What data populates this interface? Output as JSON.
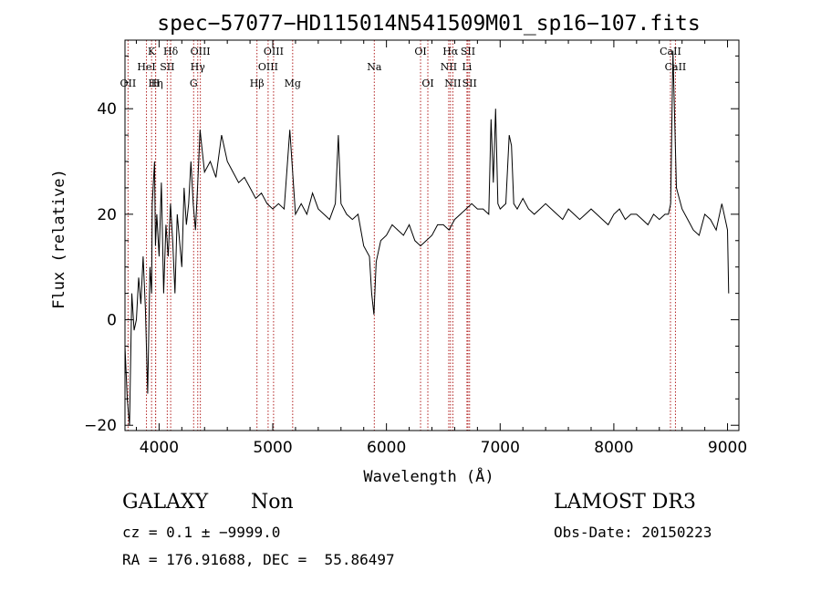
{
  "chart_data": {
    "type": "line",
    "title": "spec−57077−HD115014N541509M01_sp16−107.fits",
    "xlabel": "Wavelength (Å)",
    "ylabel": "Flux (relative)",
    "xlim": [
      3700,
      9100
    ],
    "ylim": [
      -21,
      53
    ],
    "x_ticks": [
      4000,
      5000,
      6000,
      7000,
      8000,
      9000
    ],
    "y_ticks": [
      -20,
      0,
      20,
      40
    ],
    "grid": false,
    "legend": "none",
    "line_color": "#000000",
    "marker_line_color": "#b22222",
    "series": [
      {
        "x": [
          3700,
          3720,
          3740,
          3760,
          3780,
          3800,
          3820,
          3840,
          3860,
          3880,
          3900,
          3920,
          3934,
          3940,
          3960,
          3968,
          3980,
          4000,
          4020,
          4040,
          4060,
          4080,
          4100,
          4120,
          4140,
          4160,
          4180,
          4200,
          4220,
          4240,
          4260,
          4280,
          4300,
          4320,
          4340,
          4360,
          4380,
          4400,
          4450,
          4500,
          4550,
          4600,
          4650,
          4700,
          4750,
          4800,
          4850,
          4900,
          4950,
          5000,
          5050,
          5100,
          5150,
          5200,
          5250,
          5300,
          5350,
          5400,
          5450,
          5500,
          5550,
          5577,
          5600,
          5650,
          5700,
          5750,
          5800,
          5850,
          5870,
          5890,
          5910,
          5950,
          6000,
          6050,
          6100,
          6150,
          6200,
          6250,
          6300,
          6350,
          6400,
          6450,
          6500,
          6550,
          6600,
          6650,
          6700,
          6750,
          6800,
          6850,
          6900,
          6920,
          6940,
          6960,
          6980,
          7000,
          7050,
          7080,
          7100,
          7120,
          7150,
          7200,
          7250,
          7300,
          7350,
          7400,
          7450,
          7500,
          7550,
          7600,
          7650,
          7700,
          7750,
          7800,
          7850,
          7900,
          7950,
          8000,
          8050,
          8100,
          8150,
          8200,
          8250,
          8300,
          8350,
          8400,
          8450,
          8480,
          8500,
          8520,
          8550,
          8600,
          8650,
          8700,
          8750,
          8800,
          8850,
          8900,
          8950,
          8990,
          9000,
          9010
        ],
        "y": [
          -5,
          -15,
          -20,
          5,
          -2,
          0,
          8,
          3,
          12,
          2,
          -14,
          10,
          5,
          22,
          30,
          14,
          20,
          12,
          26,
          5,
          18,
          12,
          22,
          15,
          5,
          20,
          15,
          10,
          25,
          18,
          22,
          30,
          22,
          17,
          26,
          36,
          32,
          28,
          30,
          27,
          35,
          30,
          28,
          26,
          27,
          25,
          23,
          24,
          22,
          21,
          22,
          21,
          36,
          20,
          22,
          20,
          24,
          21,
          20,
          19,
          22,
          35,
          22,
          20,
          19,
          20,
          14,
          12,
          5,
          1,
          11,
          15,
          16,
          18,
          17,
          16,
          18,
          15,
          14,
          15,
          16,
          18,
          18,
          17,
          19,
          20,
          21,
          22,
          21,
          21,
          20,
          38,
          26,
          40,
          22,
          21,
          22,
          35,
          33,
          22,
          21,
          23,
          21,
          20,
          21,
          22,
          21,
          20,
          19,
          21,
          20,
          19,
          20,
          21,
          20,
          19,
          18,
          20,
          21,
          19,
          20,
          20,
          19,
          18,
          20,
          19,
          20,
          20,
          22,
          51,
          25,
          21,
          19,
          17,
          16,
          20,
          19,
          17,
          22,
          18,
          17,
          5
        ]
      }
    ],
    "line_markers": [
      {
        "x": 3727,
        "label": "OII",
        "row": 3
      },
      {
        "x": 3934,
        "label": "K",
        "row": 1
      },
      {
        "x": 3969,
        "label": "H",
        "row": 3
      },
      {
        "x": 3889,
        "label": "HeI",
        "row": 2
      },
      {
        "x": 4102,
        "label": "Hδ",
        "row": 1
      },
      {
        "x": 3970,
        "label": "Hη",
        "row": 3
      },
      {
        "x": 4072,
        "label": "SII",
        "row": 2
      },
      {
        "x": 4304,
        "label": "G",
        "row": 3
      },
      {
        "x": 4340,
        "label": "Hγ",
        "row": 2
      },
      {
        "x": 4363,
        "label": "OIII",
        "row": 1
      },
      {
        "x": 4861,
        "label": "Hβ",
        "row": 3
      },
      {
        "x": 4959,
        "label": "OIII",
        "row": 2
      },
      {
        "x": 5007,
        "label": "OIII",
        "row": 1
      },
      {
        "x": 5175,
        "label": "Mg",
        "row": 3
      },
      {
        "x": 5893,
        "label": "Na",
        "row": 2
      },
      {
        "x": 6300,
        "label": "OI",
        "row": 1
      },
      {
        "x": 6364,
        "label": "OI",
        "row": 3
      },
      {
        "x": 6548,
        "label": "NII",
        "row": 2
      },
      {
        "x": 6563,
        "label": "Hα",
        "row": 1
      },
      {
        "x": 6584,
        "label": "NII",
        "row": 3
      },
      {
        "x": 6717,
        "label": "SII",
        "row": 1
      },
      {
        "x": 6731,
        "label": "SII",
        "row": 3
      },
      {
        "x": 6708,
        "label": "Li",
        "row": 2
      },
      {
        "x": 8498,
        "label": "CaII",
        "row": 1
      },
      {
        "x": 8542,
        "label": "CaII",
        "row": 2
      }
    ]
  },
  "footer": {
    "class_label": "GALAXY",
    "subclass_label": "Non",
    "survey_label": "LAMOST DR3",
    "cz_text": "cz = 0.1 ± −9999.0",
    "obs_date_text": "Obs-Date: 20150223",
    "coords_text": "RA = 176.91688, DEC =  55.86497"
  }
}
